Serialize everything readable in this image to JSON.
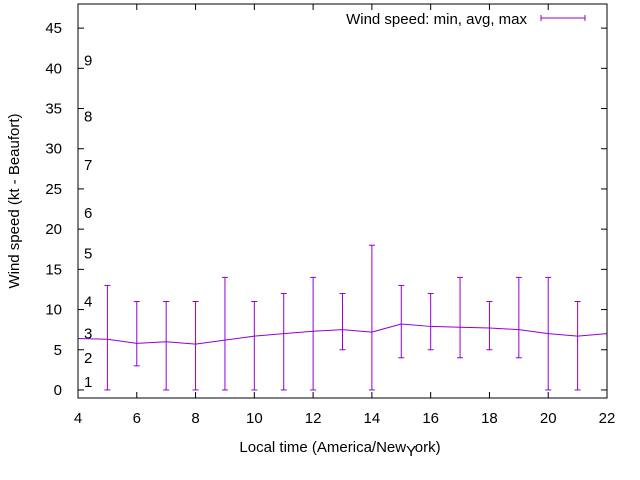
{
  "chart_data": {
    "type": "line",
    "title": "",
    "xlabel_main": "Local time (America/New",
    "xlabel_sub": "Y",
    "xlabel_tail": "ork)",
    "ylabel": "Wind speed (kt - Beaufort)",
    "xlim": [
      4,
      22
    ],
    "ylim": [
      -1,
      48
    ],
    "x_ticks": [
      4,
      6,
      8,
      10,
      12,
      14,
      16,
      18,
      20,
      22
    ],
    "y_ticks": [
      0,
      5,
      10,
      15,
      20,
      25,
      30,
      35,
      40,
      45
    ],
    "beaufort_labels": [
      {
        "label": "1",
        "y": 1
      },
      {
        "label": "2",
        "y": 4
      },
      {
        "label": "3",
        "y": 7
      },
      {
        "label": "4",
        "y": 11
      },
      {
        "label": "5",
        "y": 17
      },
      {
        "label": "6",
        "y": 22
      },
      {
        "label": "7",
        "y": 28
      },
      {
        "label": "8",
        "y": 34
      },
      {
        "label": "9",
        "y": 41
      }
    ],
    "legend": {
      "label": "Wind speed: min, avg, max",
      "position": "top-right"
    },
    "series": [
      {
        "name": "Wind speed: min, avg, max",
        "color": "#9400d3",
        "x": [
          4,
          5,
          6,
          7,
          8,
          9,
          10,
          11,
          12,
          13,
          14,
          15,
          16,
          17,
          18,
          19,
          20,
          21,
          22
        ],
        "avg": [
          6.4,
          6.3,
          5.8,
          6.0,
          5.7,
          6.2,
          6.7,
          7.0,
          7.3,
          7.5,
          7.2,
          8.2,
          7.9,
          7.8,
          7.7,
          7.5,
          7.0,
          6.7,
          7.0
        ],
        "min": [
          null,
          0,
          3,
          0,
          0,
          0,
          0,
          0,
          0,
          5,
          0,
          4,
          5,
          4,
          5,
          4,
          0,
          0,
          null
        ],
        "max": [
          null,
          13,
          11,
          11,
          11,
          14,
          11,
          12,
          14,
          12,
          18,
          13,
          12,
          14,
          11,
          14,
          14,
          11,
          null
        ]
      }
    ]
  }
}
